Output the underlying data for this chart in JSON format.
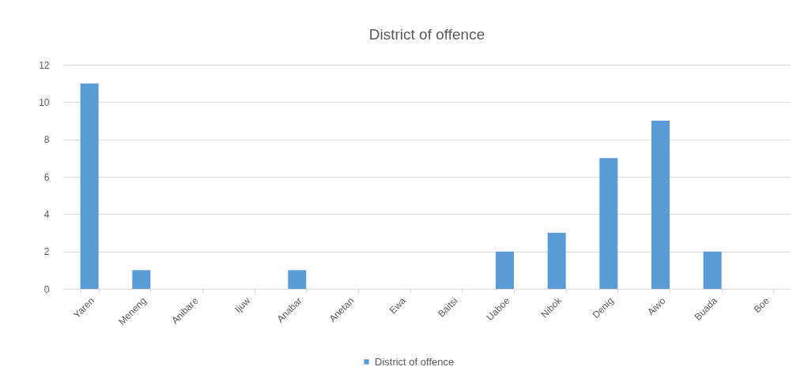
{
  "chart_data": {
    "type": "bar",
    "title": "District of offence",
    "categories": [
      "Yaren",
      "Meneng",
      "Anibare",
      "Ijuw",
      "Anabar",
      "Anetan",
      "Ewa",
      "Baitsi",
      "Uaboe",
      "Nibok",
      "Denig",
      "Aiwo",
      "Buada",
      "Boe"
    ],
    "series": [
      {
        "name": "District of offence",
        "color": "#5b9bd5",
        "values": [
          11,
          1,
          0,
          0,
          1,
          0,
          0,
          0,
          2,
          3,
          7,
          9,
          2,
          0
        ]
      }
    ],
    "ylim": [
      0,
      12
    ],
    "yticks": [
      0,
      2,
      4,
      6,
      8,
      10,
      12
    ],
    "grid": "y",
    "legend": "bottom"
  }
}
